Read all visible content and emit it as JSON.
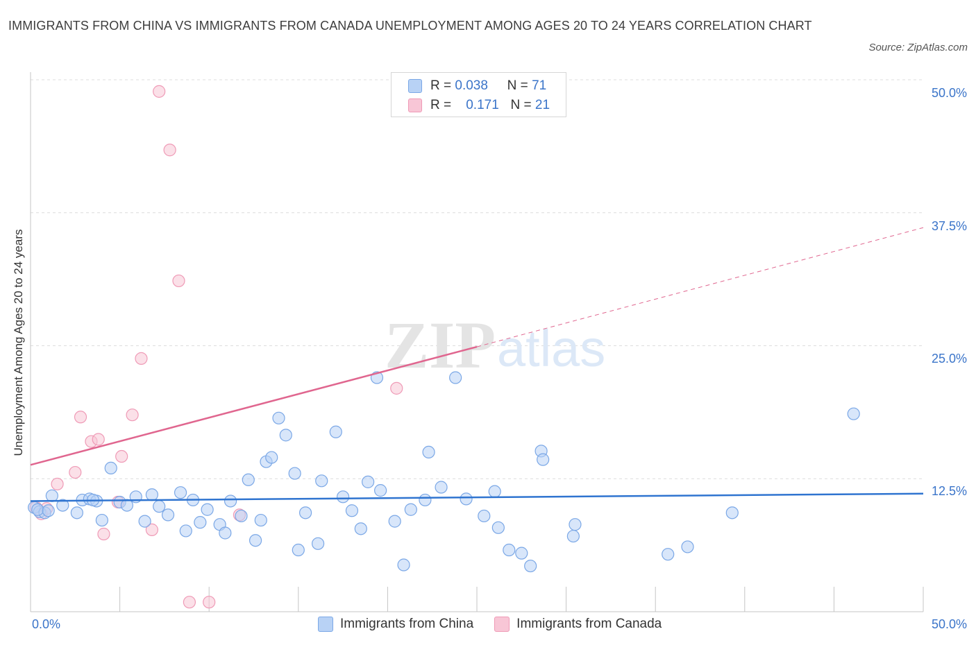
{
  "header": {
    "title": "IMMIGRANTS FROM CHINA VS IMMIGRANTS FROM CANADA UNEMPLOYMENT AMONG AGES 20 TO 24 YEARS CORRELATION CHART",
    "source": "Source: ZipAtlas.com"
  },
  "legend": {
    "row1": {
      "r_label": "R =",
      "r_value": "0.038",
      "n_label": "N =",
      "n_value": "71"
    },
    "row2": {
      "r_label": "R =",
      "r_value": "0.171",
      "n_label": "N =",
      "n_value": "21"
    }
  },
  "bottom_legend": {
    "china": "Immigrants from China",
    "canada": "Immigrants from Canada"
  },
  "colors": {
    "china_fill": "#b8d2f5",
    "china_stroke": "#7aa7e6",
    "china_line": "#2f74d0",
    "canada_fill": "#f8c6d6",
    "canada_stroke": "#ef9ab6",
    "canada_line": "#e0668f",
    "tick_text": "#3a74c9",
    "grid": "#dcdcdc"
  },
  "chart_data": {
    "type": "scatter",
    "title": "IMMIGRANTS FROM CHINA VS IMMIGRANTS FROM CANADA UNEMPLOYMENT AMONG AGES 20 TO 24 YEARS CORRELATION CHART",
    "xlabel": "",
    "ylabel": "Unemployment Among Ages 20 to 24 years",
    "xlim": [
      0,
      50
    ],
    "ylim": [
      0,
      50
    ],
    "x_tick_labels": [
      "0.0%",
      "50.0%"
    ],
    "y_tick_labels": [
      "12.5%",
      "25.0%",
      "37.5%",
      "50.0%"
    ],
    "y_ticks": [
      12.5,
      25,
      37.5,
      50
    ],
    "grid": true,
    "legend_position": "top-center",
    "series": [
      {
        "name": "Immigrants from China",
        "R": 0.038,
        "N": 71,
        "trend": {
          "x": [
            0,
            50
          ],
          "y": [
            10.4,
            11.1
          ]
        },
        "points": [
          [
            0.2,
            9.8
          ],
          [
            0.5,
            9.4
          ],
          [
            0.8,
            9.3
          ],
          [
            1.2,
            10.9
          ],
          [
            1.8,
            10.0
          ],
          [
            2.6,
            9.3
          ],
          [
            2.9,
            10.5
          ],
          [
            3.3,
            10.6
          ],
          [
            3.7,
            10.4
          ],
          [
            4.0,
            8.6
          ],
          [
            4.5,
            13.5
          ],
          [
            5.0,
            10.3
          ],
          [
            5.4,
            10.0
          ],
          [
            5.9,
            10.8
          ],
          [
            6.4,
            8.5
          ],
          [
            6.8,
            11.0
          ],
          [
            7.2,
            9.9
          ],
          [
            7.7,
            9.1
          ],
          [
            8.4,
            11.2
          ],
          [
            8.7,
            7.6
          ],
          [
            9.1,
            10.5
          ],
          [
            9.5,
            8.4
          ],
          [
            9.9,
            9.6
          ],
          [
            10.6,
            8.2
          ],
          [
            10.9,
            7.4
          ],
          [
            11.2,
            10.4
          ],
          [
            11.8,
            9.0
          ],
          [
            12.2,
            12.4
          ],
          [
            12.6,
            6.7
          ],
          [
            12.9,
            8.6
          ],
          [
            13.2,
            14.1
          ],
          [
            13.5,
            14.5
          ],
          [
            13.9,
            18.2
          ],
          [
            14.3,
            16.6
          ],
          [
            14.8,
            13.0
          ],
          [
            15.0,
            5.8
          ],
          [
            15.4,
            9.3
          ],
          [
            16.1,
            6.4
          ],
          [
            16.3,
            12.3
          ],
          [
            17.1,
            16.9
          ],
          [
            17.5,
            10.8
          ],
          [
            18.0,
            9.5
          ],
          [
            18.5,
            7.8
          ],
          [
            18.9,
            12.2
          ],
          [
            19.4,
            22.0
          ],
          [
            19.6,
            11.4
          ],
          [
            20.4,
            8.5
          ],
          [
            20.9,
            4.4
          ],
          [
            21.3,
            9.6
          ],
          [
            22.1,
            10.5
          ],
          [
            22.3,
            15.0
          ],
          [
            23.0,
            11.7
          ],
          [
            23.8,
            22.0
          ],
          [
            24.4,
            10.6
          ],
          [
            25.4,
            9.0
          ],
          [
            26.0,
            11.3
          ],
          [
            26.2,
            7.9
          ],
          [
            26.8,
            5.8
          ],
          [
            27.5,
            5.5
          ],
          [
            28.0,
            4.3
          ],
          [
            28.6,
            15.1
          ],
          [
            28.7,
            14.3
          ],
          [
            30.4,
            7.1
          ],
          [
            30.5,
            8.2
          ],
          [
            35.7,
            5.4
          ],
          [
            36.8,
            6.1
          ],
          [
            39.3,
            9.3
          ],
          [
            46.1,
            18.6
          ],
          [
            0.4,
            9.6
          ],
          [
            1.0,
            9.5
          ],
          [
            3.5,
            10.5
          ]
        ]
      },
      {
        "name": "Immigrants from Canada",
        "R": 0.171,
        "N": 21,
        "trend": {
          "x": [
            0,
            25
          ],
          "y": [
            13.8,
            24.9
          ]
        },
        "trend_extended": {
          "x": [
            25,
            50
          ],
          "y": [
            24.9,
            36.1
          ]
        },
        "points": [
          [
            0.3,
            9.8
          ],
          [
            1.5,
            12.0
          ],
          [
            2.5,
            13.1
          ],
          [
            2.8,
            18.3
          ],
          [
            3.4,
            16.0
          ],
          [
            3.8,
            16.2
          ],
          [
            4.1,
            7.3
          ],
          [
            4.9,
            10.3
          ],
          [
            5.1,
            14.6
          ],
          [
            5.7,
            18.5
          ],
          [
            6.2,
            23.8
          ],
          [
            6.8,
            7.7
          ],
          [
            7.2,
            48.9
          ],
          [
            7.8,
            43.4
          ],
          [
            8.3,
            31.1
          ],
          [
            8.9,
            0.9
          ],
          [
            10.0,
            0.9
          ],
          [
            11.7,
            9.1
          ],
          [
            20.5,
            21.0
          ],
          [
            0.9,
            9.7
          ],
          [
            0.6,
            9.2
          ]
        ]
      }
    ]
  }
}
